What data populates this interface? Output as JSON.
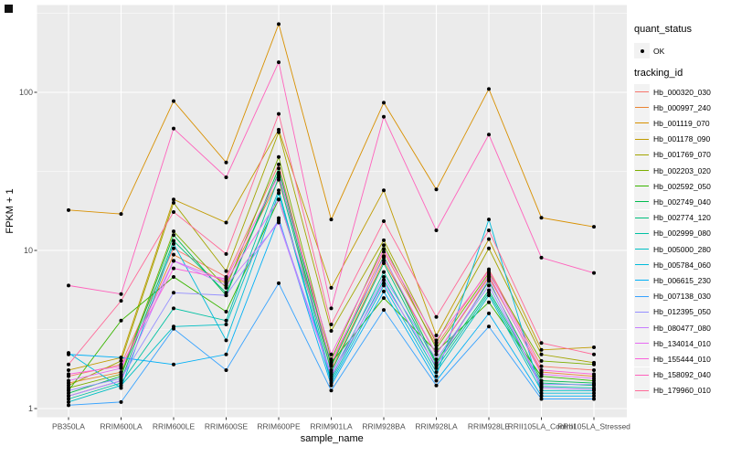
{
  "figure": {
    "background": "#ffffff",
    "panel_background": "#ebebeb",
    "grid_color": "#ffffff",
    "point_color": "#000000",
    "tick_text_color": "#4d4d4d",
    "legend_key_background": "#f2f2f2"
  },
  "legend": {
    "quant_status": {
      "title": "quant_status",
      "items": [
        {
          "label": "OK",
          "symbol": "point"
        }
      ]
    },
    "tracking_id": {
      "title": "tracking_id"
    }
  },
  "chart_data": {
    "type": "line",
    "title": "",
    "xlabel": "sample_name",
    "ylabel": "FPKM + 1",
    "y_scale": "log10",
    "y_ticks": [
      "1",
      "10",
      "100"
    ],
    "y_tick_values": [
      1,
      10,
      100
    ],
    "ylim": [
      0.93,
      330
    ],
    "grid": true,
    "legend_position": "right",
    "categories": [
      "PB350LA",
      "RRIM600LA",
      "RRIM600LE",
      "RRIM600SE",
      "RRIM600PE",
      "RRIM901LA",
      "RRIM928BA",
      "RRIM928LA",
      "RRIM928LE",
      "RRII105LA_Control",
      "RRII105LA_Stressed"
    ],
    "series": [
      {
        "name": "Hb_000320_030",
        "color": "#F8766D",
        "values": [
          1.6,
          1.9,
          10.3,
          6.8,
          35,
          1.9,
          9.8,
          2.5,
          7.6,
          1.85,
          1.75
        ]
      },
      {
        "name": "Hb_000997_240",
        "color": "#EA8331",
        "values": [
          1.45,
          1.7,
          9.4,
          6.2,
          28,
          1.75,
          8.6,
          2.2,
          6.8,
          1.7,
          1.6
        ]
      },
      {
        "name": "Hb_001119_070",
        "color": "#D89000",
        "values": [
          18,
          17,
          88,
          36,
          270,
          15.7,
          86,
          24.3,
          105,
          16.1,
          14.1
        ]
      },
      {
        "name": "Hb_001178_090",
        "color": "#C09B00",
        "values": [
          1.75,
          2.1,
          21,
          15,
          58,
          5.8,
          24,
          2.9,
          11.8,
          2.35,
          2.44
        ]
      },
      {
        "name": "Hb_001769_070",
        "color": "#A3A500",
        "values": [
          1.4,
          2.0,
          20,
          7.4,
          56,
          3.1,
          11.6,
          2.6,
          10.3,
          2.2,
          1.95
        ]
      },
      {
        "name": "Hb_002203_020",
        "color": "#7CAE00",
        "values": [
          1.35,
          1.65,
          13.2,
          5.8,
          39,
          2.05,
          10.8,
          2.4,
          7.2,
          2.0,
          1.9
        ]
      },
      {
        "name": "Hb_002592_050",
        "color": "#39B600",
        "values": [
          1.3,
          3.6,
          6.8,
          4.1,
          21,
          1.95,
          5.0,
          2.3,
          4.7,
          1.6,
          1.5
        ]
      },
      {
        "name": "Hb_002749_040",
        "color": "#00BB4E",
        "values": [
          1.25,
          1.6,
          12.5,
          5.2,
          33,
          1.85,
          9.2,
          1.95,
          6.4,
          1.5,
          1.45
        ]
      },
      {
        "name": "Hb_002774_120",
        "color": "#00BF7D",
        "values": [
          1.2,
          1.5,
          11.5,
          5.4,
          31,
          1.7,
          8.3,
          1.9,
          5.6,
          1.45,
          1.4
        ]
      },
      {
        "name": "Hb_002999_080",
        "color": "#00C1A3",
        "values": [
          1.15,
          1.45,
          4.3,
          3.6,
          29,
          1.55,
          7.3,
          1.8,
          5.4,
          1.38,
          1.35
        ]
      },
      {
        "name": "Hb_005000_280",
        "color": "#00BFC4",
        "values": [
          1.1,
          1.4,
          3.3,
          3.4,
          24,
          1.5,
          6.5,
          1.7,
          5.2,
          1.3,
          1.3
        ]
      },
      {
        "name": "Hb_005784_060",
        "color": "#00BBDA",
        "values": [
          2.25,
          1.35,
          11,
          2.7,
          23,
          1.45,
          6.0,
          1.6,
          15.7,
          1.25,
          1.25
        ]
      },
      {
        "name": "Hb_006615_230",
        "color": "#00B0F6",
        "values": [
          2.2,
          2.1,
          1.9,
          2.2,
          16,
          1.4,
          5.5,
          1.5,
          4.0,
          1.2,
          1.2
        ]
      },
      {
        "name": "Hb_007138_030",
        "color": "#35A2FF",
        "values": [
          1.05,
          1.1,
          3.2,
          1.75,
          6.2,
          1.3,
          4.2,
          1.4,
          3.3,
          1.15,
          1.15
        ]
      },
      {
        "name": "Hb_012395_050",
        "color": "#9590FF",
        "values": [
          1.3,
          1.55,
          5.4,
          5.2,
          15.5,
          1.65,
          6.8,
          2.05,
          6.0,
          1.42,
          1.42
        ]
      },
      {
        "name": "Hb_080477_080",
        "color": "#C77CFF",
        "values": [
          1.2,
          1.5,
          8.6,
          6.0,
          15,
          1.6,
          6.2,
          1.85,
          6.6,
          1.35,
          1.32
        ]
      },
      {
        "name": "Hb_134014_010",
        "color": "#E76BF3",
        "values": [
          1.5,
          1.8,
          8.6,
          6.4,
          21,
          2.0,
          9.0,
          2.2,
          7.0,
          1.65,
          1.55
        ]
      },
      {
        "name": "Hb_155444_010",
        "color": "#FA62DB",
        "values": [
          1.65,
          1.85,
          7.7,
          6.6,
          30,
          2.2,
          10.2,
          2.7,
          7.4,
          1.75,
          1.65
        ]
      },
      {
        "name": "Hb_158092_040",
        "color": "#FF62BC",
        "values": [
          6.0,
          5.3,
          59,
          29,
          155,
          4.3,
          70,
          13.4,
          54,
          9.0,
          7.2
        ]
      },
      {
        "name": "Hb_179960_010",
        "color": "#FF6A98",
        "values": [
          1.9,
          4.8,
          17.5,
          9.5,
          73,
          3.4,
          15.3,
          3.8,
          13.4,
          2.6,
          2.2
        ]
      }
    ]
  }
}
